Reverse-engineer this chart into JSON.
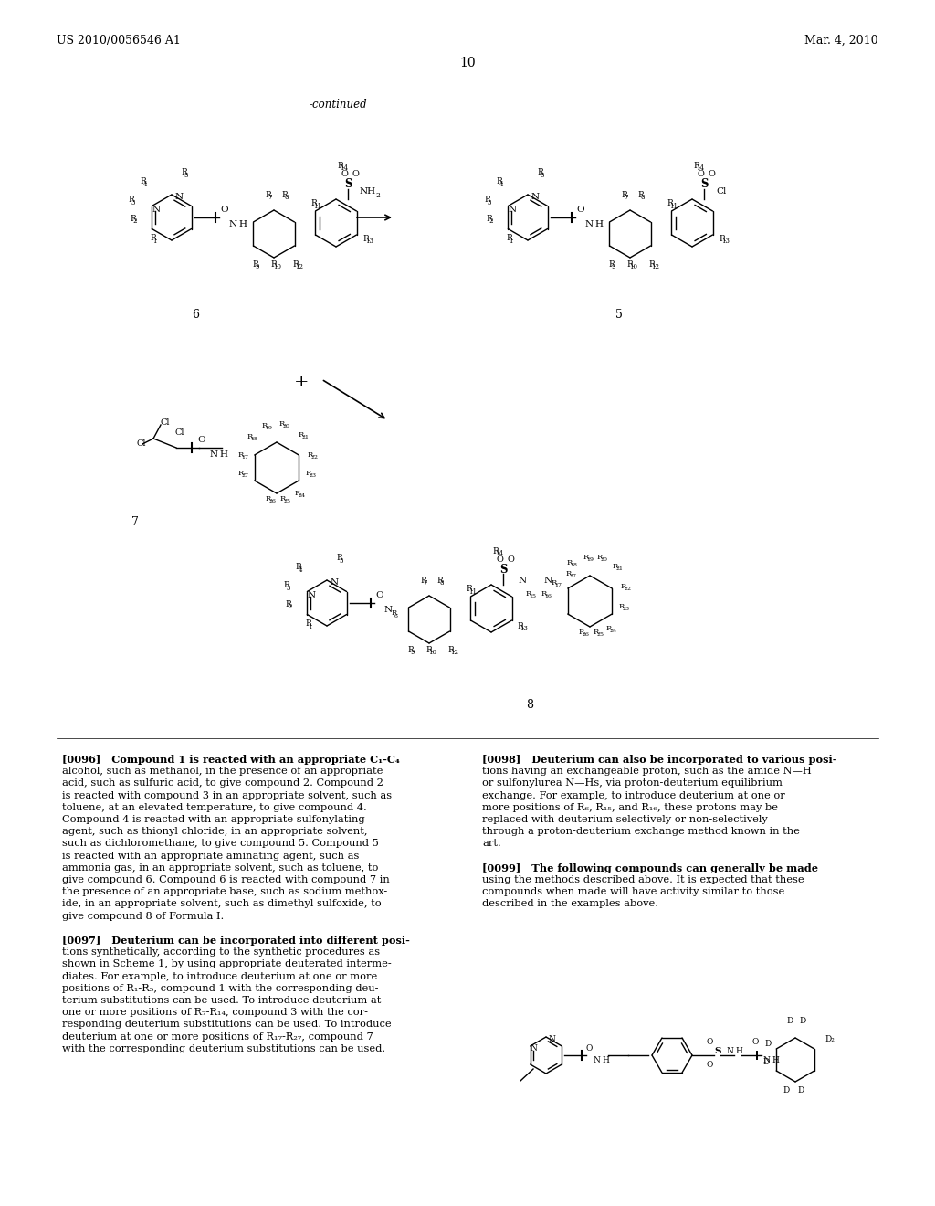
{
  "bg": "#ffffff",
  "header_left": "US 2010/0056546 A1",
  "header_right": "Mar. 4, 2010",
  "page_num": "10",
  "continued": "-continued",
  "comp6_label": "6",
  "comp5_label": "5",
  "comp7_label": "7",
  "comp8_label": "8"
}
